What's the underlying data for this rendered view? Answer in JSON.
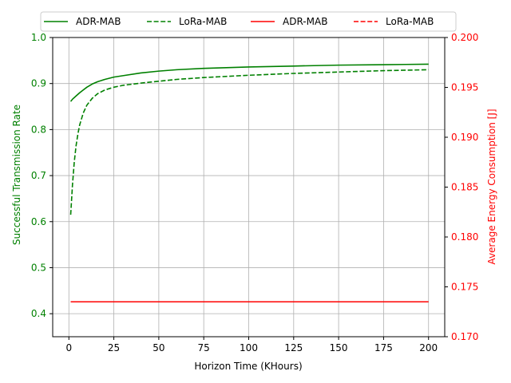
{
  "chart_data": {
    "type": "line",
    "xlabel": "Horizon Time (KHours)",
    "ylabel_left": "Successful Transmission Rate",
    "ylabel_right": "Average Energy Consumption [J]",
    "xlim": [
      -9,
      209
    ],
    "ylim_left": [
      0.35,
      1.0
    ],
    "ylim_right": [
      0.17,
      0.2
    ],
    "x_ticks": [
      0,
      25,
      50,
      75,
      100,
      125,
      150,
      175,
      200
    ],
    "x_tick_labels": [
      "0",
      "25",
      "50",
      "75",
      "100",
      "125",
      "150",
      "175",
      "200"
    ],
    "y_left_ticks": [
      0.4,
      0.5,
      0.6,
      0.7,
      0.8,
      0.9,
      1.0
    ],
    "y_left_tick_labels": [
      "0.4",
      "0.5",
      "0.6",
      "0.7",
      "0.8",
      "0.9",
      "1.0"
    ],
    "y_right_ticks": [
      0.17,
      0.175,
      0.18,
      0.185,
      0.19,
      0.195,
      0.2
    ],
    "y_right_tick_labels": [
      "0.170",
      "0.175",
      "0.180",
      "0.185",
      "0.190",
      "0.195",
      "0.200"
    ],
    "grid": true,
    "legend_position": "top-center",
    "colors": {
      "left_axis": "#008000",
      "right_axis": "#ff0000"
    },
    "series": [
      {
        "name": "ADR-MAB",
        "axis": "left",
        "color": "#008000",
        "dash": "solid",
        "x": [
          1,
          2,
          4,
          6,
          8,
          10,
          13,
          16,
          20,
          25,
          30,
          40,
          50,
          60,
          75,
          100,
          125,
          150,
          175,
          200
        ],
        "y": [
          0.861,
          0.866,
          0.873,
          0.88,
          0.886,
          0.892,
          0.899,
          0.904,
          0.909,
          0.914,
          0.917,
          0.923,
          0.927,
          0.93,
          0.933,
          0.936,
          0.938,
          0.94,
          0.941,
          0.942
        ]
      },
      {
        "name": "LoRa-MAB",
        "axis": "left",
        "color": "#008000",
        "dash": "dashed",
        "x": [
          1,
          2,
          3,
          4,
          5,
          6,
          8,
          10,
          13,
          16,
          20,
          25,
          30,
          40,
          50,
          60,
          75,
          100,
          125,
          150,
          175,
          200
        ],
        "y": [
          0.615,
          0.68,
          0.73,
          0.765,
          0.79,
          0.81,
          0.836,
          0.853,
          0.868,
          0.878,
          0.886,
          0.892,
          0.896,
          0.901,
          0.905,
          0.909,
          0.913,
          0.918,
          0.922,
          0.925,
          0.928,
          0.93
        ]
      },
      {
        "name": "ADR-MAB",
        "axis": "right",
        "color": "#ff0000",
        "dash": "solid",
        "x": [
          1,
          200
        ],
        "y": [
          0.1735,
          0.1735
        ]
      },
      {
        "name": "LoRa-MAB",
        "axis": "right",
        "color": "#ff0000",
        "dash": "dashed",
        "x": [],
        "y": []
      }
    ]
  }
}
